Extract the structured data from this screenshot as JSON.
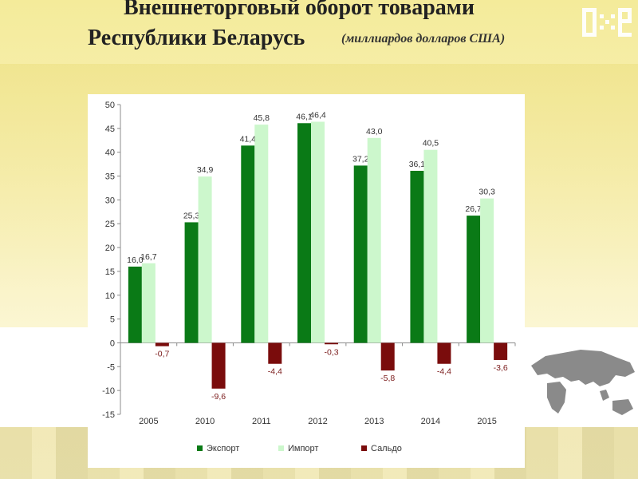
{
  "title": {
    "line1": "Внешнеторговый оборот товарами",
    "line2": "Республики Беларусь",
    "unit": "(миллиардов долларов США)"
  },
  "colors": {
    "export": "#0a7a16",
    "import": "#ccf7cc",
    "saldo": "#7a0c0c",
    "saldo_label": "#7a1a1a"
  },
  "icons": {
    "logo": "tile-logo-icon",
    "map": "world-map-icon"
  },
  "chart_data": {
    "type": "bar",
    "categories": [
      "2005",
      "2010",
      "2011",
      "2012",
      "2013",
      "2014",
      "2015"
    ],
    "series": [
      {
        "name": "Экспорт",
        "values": [
          16.0,
          25.3,
          41.4,
          46.1,
          37.2,
          36.1,
          26.7
        ]
      },
      {
        "name": "Импорт",
        "values": [
          16.7,
          34.9,
          45.8,
          46.4,
          43.0,
          40.5,
          30.3
        ]
      },
      {
        "name": "Сальдо",
        "values": [
          -0.7,
          -9.6,
          -4.4,
          -0.3,
          -5.8,
          -4.4,
          -3.6
        ]
      }
    ],
    "value_labels": {
      "Экспорт": [
        "16,0",
        "25,3",
        "41,4",
        "46,1",
        "37,2",
        "36,1",
        "26,7"
      ],
      "Импорт": [
        "16,7",
        "34,9",
        "45,8",
        "46,4",
        "43,0",
        "40,5",
        "30,3"
      ],
      "Сальдо": [
        "-0,7",
        "-9,6",
        "-4,4",
        "-0,3",
        "-5,8",
        "-4,4",
        "-3,6"
      ]
    },
    "ylim": [
      -15,
      50
    ],
    "yticks": [
      "50",
      "45",
      "40",
      "35",
      "30",
      "25",
      "20",
      "15",
      "10",
      "5",
      "0",
      "-5",
      "-10",
      "-15"
    ],
    "legend_position": "bottom",
    "grid": false
  }
}
